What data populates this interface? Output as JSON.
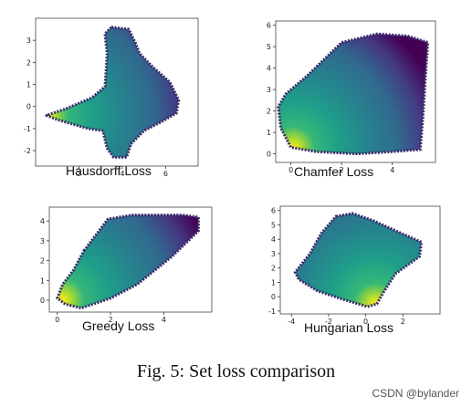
{
  "caption": "Fig. 5: Set loss comparison",
  "watermark": "CSDN @bylander",
  "chart_data": [
    {
      "type": "scatter",
      "title": "Hausdorff Loss",
      "xlim": [
        0,
        7.5
      ],
      "ylim": [
        -2.7,
        4
      ],
      "xticks": [
        2,
        4,
        6
      ],
      "yticks": [
        -2,
        -1,
        0,
        1,
        2,
        3
      ],
      "cmap": "viridis",
      "outline": [
        [
          3.5,
          3.6
        ],
        [
          4.3,
          3.5
        ],
        [
          4.6,
          2.9
        ],
        [
          4.8,
          2.4
        ],
        [
          5.4,
          1.8
        ],
        [
          6.2,
          1.1
        ],
        [
          6.6,
          0.3
        ],
        [
          6.5,
          -0.3
        ],
        [
          5.8,
          -0.7
        ],
        [
          5.0,
          -1.1
        ],
        [
          4.4,
          -1.7
        ],
        [
          4.2,
          -2.3
        ],
        [
          3.6,
          -2.3
        ],
        [
          3.3,
          -1.9
        ],
        [
          3.1,
          -1.1
        ],
        [
          2.4,
          -1.0
        ],
        [
          1.0,
          -0.6
        ],
        [
          0.5,
          -0.4
        ],
        [
          1.4,
          -0.1
        ],
        [
          2.6,
          0.4
        ],
        [
          3.2,
          0.9
        ],
        [
          3.3,
          2.4
        ],
        [
          3.2,
          3.3
        ]
      ],
      "bright_point": [
        0.5,
        -0.4
      ]
    },
    {
      "type": "scatter",
      "title": "Chamfer Loss",
      "xlim": [
        -0.6,
        5.7
      ],
      "ylim": [
        -0.4,
        6.2
      ],
      "xticks": [
        0,
        2,
        4
      ],
      "yticks": [
        0,
        1,
        2,
        3,
        4,
        5,
        6
      ],
      "cmap": "viridis",
      "outline": [
        [
          2.0,
          5.2
        ],
        [
          3.4,
          5.6
        ],
        [
          4.6,
          5.5
        ],
        [
          5.4,
          5.2
        ],
        [
          5.3,
          3.5
        ],
        [
          5.2,
          1.6
        ],
        [
          5.1,
          0.2
        ],
        [
          4.0,
          0.1
        ],
        [
          2.6,
          0.0
        ],
        [
          1.0,
          0.1
        ],
        [
          0.0,
          0.3
        ],
        [
          -0.4,
          1.2
        ],
        [
          -0.5,
          2.2
        ],
        [
          -0.2,
          2.8
        ],
        [
          0.6,
          3.6
        ],
        [
          1.3,
          4.4
        ]
      ],
      "bright_point": [
        0.1,
        0.3
      ]
    },
    {
      "type": "scatter",
      "title": "Greedy Loss",
      "xlim": [
        -0.3,
        5.8
      ],
      "ylim": [
        -0.6,
        4.7
      ],
      "xticks": [
        0,
        2,
        4
      ],
      "yticks": [
        0,
        1,
        2,
        3,
        4
      ],
      "cmap": "viridis",
      "outline": [
        [
          1.0,
          2.5
        ],
        [
          1.9,
          4.1
        ],
        [
          2.8,
          4.3
        ],
        [
          3.8,
          4.3
        ],
        [
          4.7,
          4.3
        ],
        [
          5.3,
          4.2
        ],
        [
          5.3,
          3.5
        ],
        [
          4.3,
          2.2
        ],
        [
          3.0,
          0.8
        ],
        [
          2.0,
          0.1
        ],
        [
          0.9,
          -0.4
        ],
        [
          0.3,
          -0.2
        ],
        [
          0.0,
          0.1
        ],
        [
          0.2,
          0.8
        ],
        [
          0.6,
          1.5
        ]
      ],
      "bright_point": [
        0.2,
        0.0
      ]
    },
    {
      "type": "scatter",
      "title": "Hungarian Loss",
      "xlim": [
        -4.6,
        4.0
      ],
      "ylim": [
        -1.2,
        6.3
      ],
      "xticks": [
        -4,
        -2,
        0,
        2
      ],
      "yticks": [
        -1,
        0,
        1,
        2,
        3,
        4,
        5,
        6
      ],
      "cmap": "viridis",
      "outline": [
        [
          -1.6,
          5.6
        ],
        [
          -0.7,
          5.8
        ],
        [
          0.4,
          5.3
        ],
        [
          1.6,
          4.6
        ],
        [
          3.0,
          3.8
        ],
        [
          2.9,
          2.8
        ],
        [
          1.6,
          1.6
        ],
        [
          1.0,
          0.4
        ],
        [
          0.6,
          -0.5
        ],
        [
          0.1,
          -0.7
        ],
        [
          -1.2,
          -0.2
        ],
        [
          -2.6,
          0.4
        ],
        [
          -3.6,
          1.2
        ],
        [
          -3.8,
          1.7
        ],
        [
          -3.0,
          3.0
        ],
        [
          -2.4,
          4.4
        ]
      ],
      "bright_point": [
        0.5,
        -0.5
      ]
    }
  ]
}
